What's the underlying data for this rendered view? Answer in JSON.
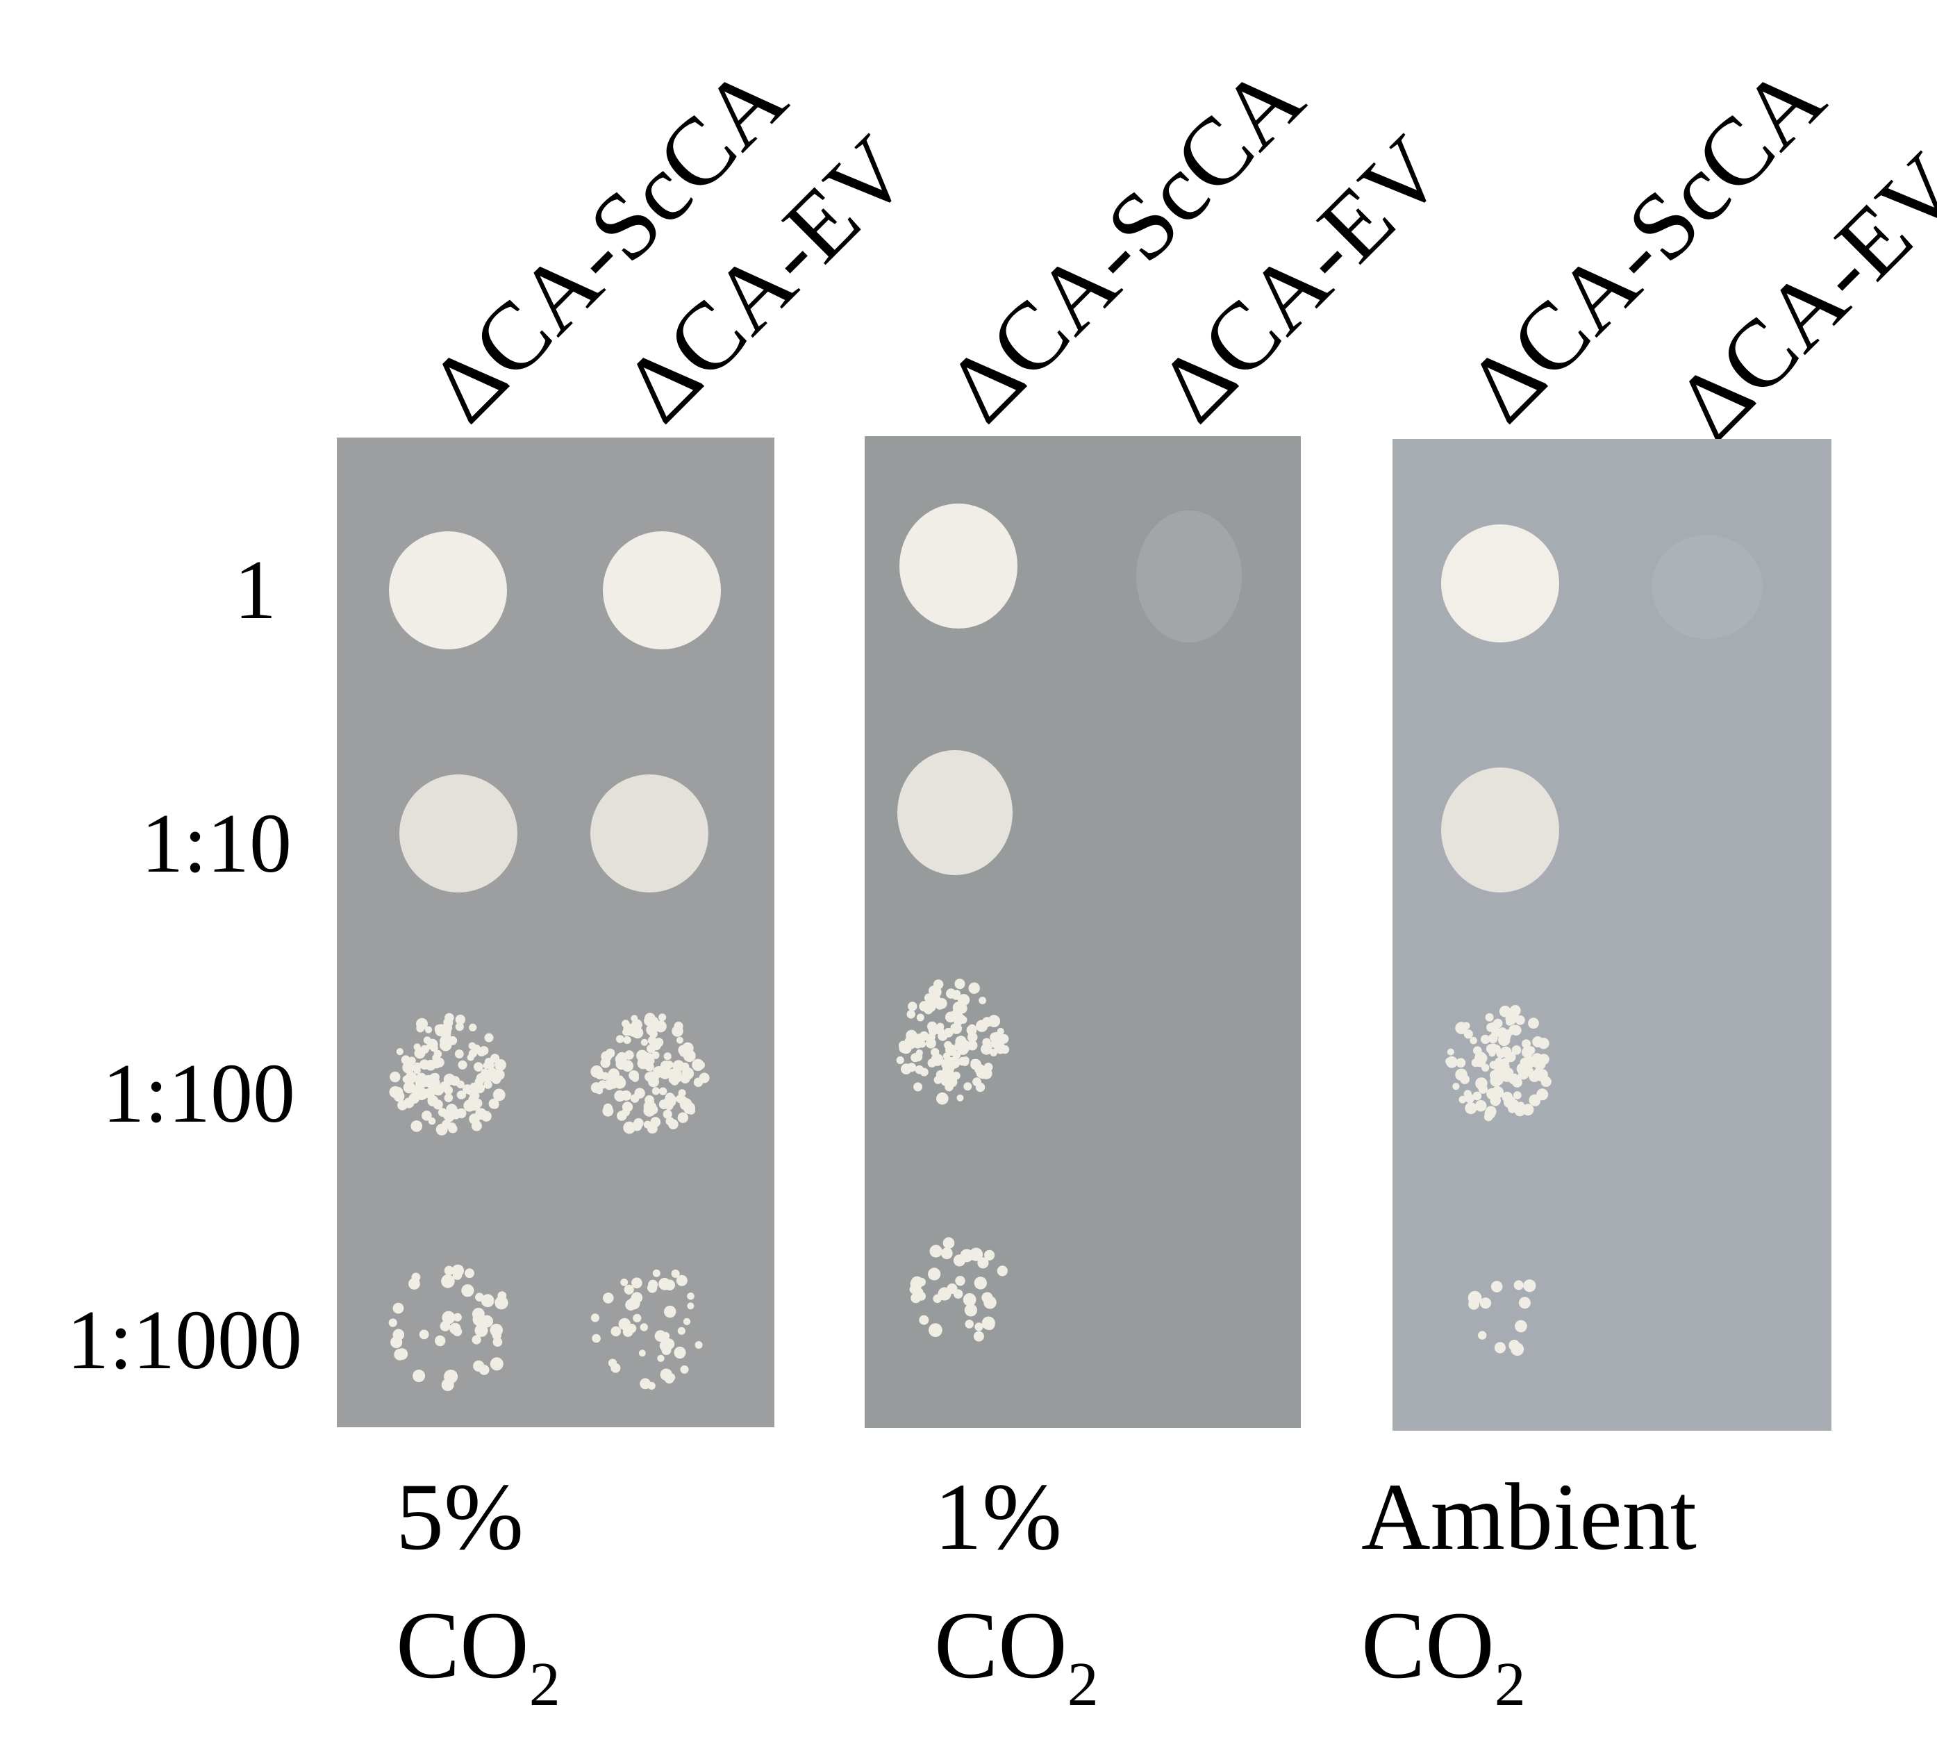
{
  "figure": {
    "dilutions": [
      "1",
      "1:10",
      "1:100",
      "1:1000"
    ],
    "panels": [
      {
        "strain_labels": [
          "ΔCA-ScCA",
          "ΔCA-EV"
        ],
        "condition_line1": "5%",
        "condition_line2_base": "CO",
        "condition_line2_sub": "2",
        "plate_color": "#9a9c9d",
        "growth": {
          "ΔCA-ScCA": [
            "confluent",
            "confluent",
            "colonies",
            "sparse colonies"
          ],
          "ΔCA-EV": [
            "confluent",
            "confluent",
            "colonies",
            "sparse colonies"
          ]
        }
      },
      {
        "strain_labels": [
          "ΔCA-ScCA",
          "ΔCA-EV"
        ],
        "condition_line1": "1%",
        "condition_line2_base": "CO",
        "condition_line2_sub": "2",
        "plate_color": "#95999a",
        "growth": {
          "ΔCA-ScCA": [
            "confluent",
            "confluent",
            "colonies",
            "sparse colonies"
          ],
          "ΔCA-EV": [
            "faint",
            "none",
            "none",
            "none"
          ]
        }
      },
      {
        "strain_labels": [
          "ΔCA-ScCA",
          "ΔCA-EV"
        ],
        "condition_line1": "Ambient",
        "condition_line2_base": "CO",
        "condition_line2_sub": "2",
        "plate_color": "#a5aab1",
        "growth": {
          "ΔCA-ScCA": [
            "confluent",
            "confluent",
            "colonies",
            "few colonies"
          ],
          "ΔCA-EV": [
            "faint",
            "none",
            "none",
            "none"
          ]
        }
      }
    ]
  }
}
